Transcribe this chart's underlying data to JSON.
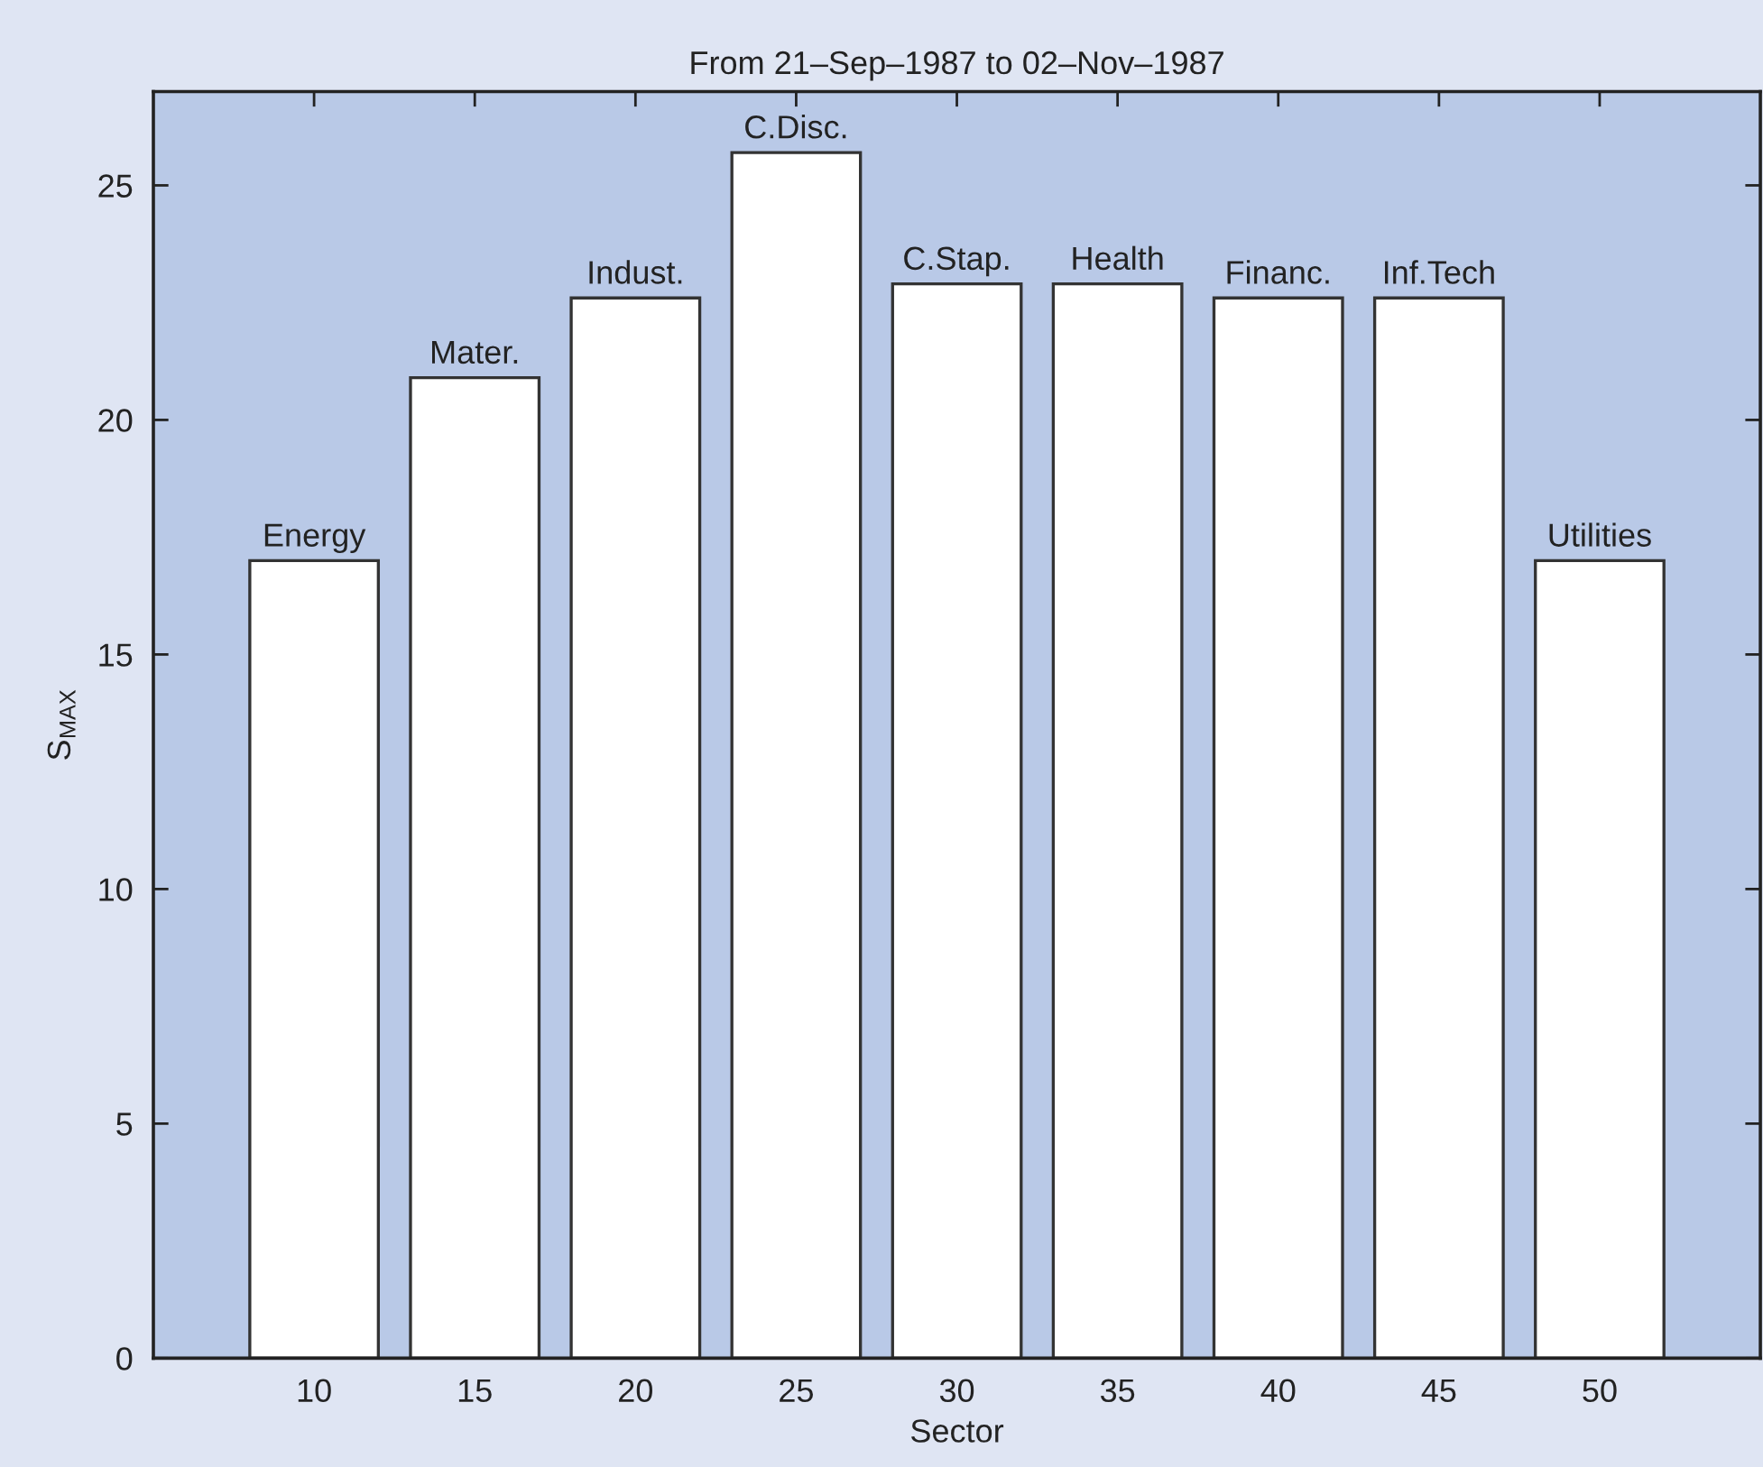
{
  "chart_data": {
    "type": "bar",
    "title": "From 21–Sep–1987 to 02–Nov–1987",
    "xlabel": "Sector",
    "ylabel": "S$_{MAX}$",
    "x": [
      10,
      15,
      20,
      25,
      30,
      35,
      40,
      45,
      50
    ],
    "values": [
      17,
      20.9,
      22.6,
      25.7,
      22.9,
      22.9,
      22.6,
      22.6,
      17
    ],
    "color": "#ffffff",
    "xlim": [
      5,
      55
    ],
    "ylim": [
      0,
      27
    ],
    "xticks": [
      10,
      15,
      20,
      25,
      30,
      35,
      40,
      45,
      50
    ],
    "yticks": [
      0,
      5,
      10,
      15,
      20,
      25
    ],
    "annotations": [
      {
        "text": "Energy",
        "x": 10,
        "y": 17
      },
      {
        "text": "Mater.",
        "x": 15,
        "y": 20.9
      },
      {
        "text": "Indust.",
        "x": 20,
        "y": 22.6
      },
      {
        "text": "C.Disc.",
        "x": 25,
        "y": 25.7
      },
      {
        "text": "C.Stap.",
        "x": 30,
        "y": 22.9
      },
      {
        "text": "Health",
        "x": 35,
        "y": 22.9
      },
      {
        "text": "Financ.",
        "x": 40,
        "y": 22.6
      },
      {
        "text": "Inf.Tech",
        "x": 45,
        "y": 22.6
      },
      {
        "text": "Utilities",
        "x": 50,
        "y": 17
      }
    ]
  }
}
